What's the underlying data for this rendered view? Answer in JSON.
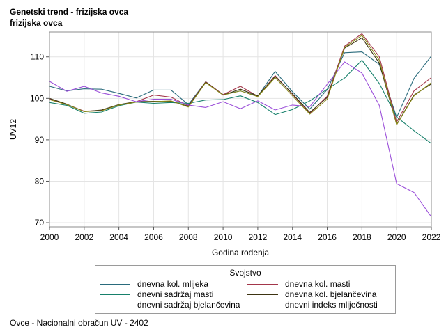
{
  "title": "Genetski trend - frizijska ovca",
  "subtitle": "frizijska ovca",
  "footnote": "Ovce - Nacionalni obračun UV - 2402",
  "chart_data": {
    "type": "line",
    "xlabel": "Godina rođenja",
    "ylabel": "UV12",
    "xlim": [
      2000,
      2022
    ],
    "ylim": [
      69,
      116
    ],
    "xticks": [
      2000,
      2002,
      2004,
      2006,
      2008,
      2010,
      2012,
      2014,
      2016,
      2018,
      2020,
      2022
    ],
    "yticks": [
      70,
      80,
      90,
      100,
      110
    ],
    "grid": true,
    "legend": {
      "title": "Svojstvo",
      "placement": "bottom"
    },
    "x": [
      2000,
      2001,
      2002,
      2003,
      2004,
      2005,
      2006,
      2007,
      2008,
      2009,
      2010,
      2011,
      2012,
      2013,
      2014,
      2015,
      2016,
      2017,
      2018,
      2019,
      2020,
      2021,
      2022
    ],
    "series": [
      {
        "name": "dnevna kol. mlijeka",
        "color": "#2a6b7c",
        "values": [
          102.9,
          101.8,
          102.3,
          102.2,
          101.2,
          100.1,
          102.0,
          102.0,
          98.5,
          104.0,
          100.9,
          101.8,
          100.5,
          106.5,
          101.6,
          97.4,
          102.1,
          111.0,
          111.2,
          108.2,
          95.4,
          104.8,
          110.2
        ]
      },
      {
        "name": "dnevna kol. masti",
        "color": "#a3364a",
        "values": [
          99.9,
          98.5,
          96.9,
          97.1,
          98.4,
          99.2,
          100.8,
          100.3,
          98.2,
          104.0,
          100.9,
          102.9,
          100.5,
          105.5,
          101.0,
          96.4,
          100.5,
          112.6,
          115.6,
          110.0,
          94.3,
          101.8,
          105.0
        ]
      },
      {
        "name": "dnevni sadržaj masti",
        "color": "#17806b",
        "values": [
          99.0,
          98.3,
          96.4,
          96.7,
          98.2,
          99.1,
          98.8,
          99.0,
          98.8,
          99.6,
          99.7,
          100.6,
          99.0,
          96.1,
          97.3,
          99.4,
          102.2,
          104.9,
          109.2,
          103.6,
          95.5,
          92.2,
          89.1
        ]
      },
      {
        "name": "dnevna kol. bjelančevina",
        "color": "#3d3412",
        "values": [
          100.0,
          98.6,
          96.8,
          97.2,
          98.5,
          99.2,
          99.3,
          99.3,
          98.1,
          103.9,
          100.8,
          102.2,
          100.6,
          105.3,
          101.1,
          96.6,
          100.2,
          112.1,
          114.6,
          108.5,
          93.7,
          100.8,
          103.5
        ]
      },
      {
        "name": "dnevni sadržaj bjelančevina",
        "color": "#9b4fd9",
        "values": [
          104.1,
          101.7,
          102.9,
          101.3,
          100.5,
          99.2,
          99.8,
          99.8,
          98.4,
          97.8,
          99.2,
          97.5,
          99.4,
          97.2,
          98.4,
          98.0,
          103.4,
          108.8,
          106.1,
          98.3,
          79.4,
          77.3,
          71.4
        ]
      },
      {
        "name": "dnevni indeks mliječnosti",
        "color": "#8a8a1a",
        "values": [
          99.7,
          98.5,
          96.8,
          97.0,
          98.4,
          99.1,
          99.2,
          99.4,
          97.9,
          103.8,
          100.8,
          101.8,
          100.4,
          105.0,
          100.6,
          96.2,
          99.8,
          112.3,
          115.2,
          109.2,
          93.6,
          100.6,
          103.8
        ]
      }
    ]
  }
}
